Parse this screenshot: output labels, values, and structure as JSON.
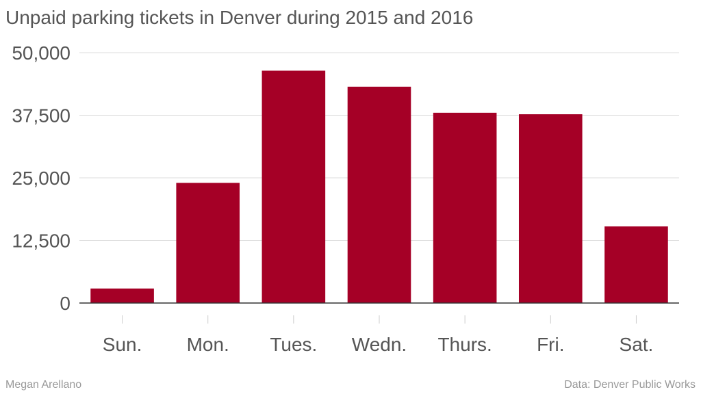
{
  "chart_data": {
    "type": "bar",
    "title": "Unpaid parking tickets in Denver during 2015 and 2016",
    "categories": [
      "Sun.",
      "Mon.",
      "Tues.",
      "Wedn.",
      "Thurs.",
      "Fri.",
      "Sat."
    ],
    "values": [
      2900,
      24000,
      46400,
      43200,
      38000,
      37700,
      15300
    ],
    "ylim": [
      0,
      50000
    ],
    "yticks": [
      0,
      12500,
      25000,
      37500,
      50000
    ],
    "ytick_labels": [
      "0",
      "12,500",
      "25,000",
      "37,500",
      "50,000"
    ],
    "bar_color": "#a50026",
    "grid": true
  },
  "footer": {
    "author": "Megan Arellano",
    "source": "Data: Denver Public Works"
  }
}
